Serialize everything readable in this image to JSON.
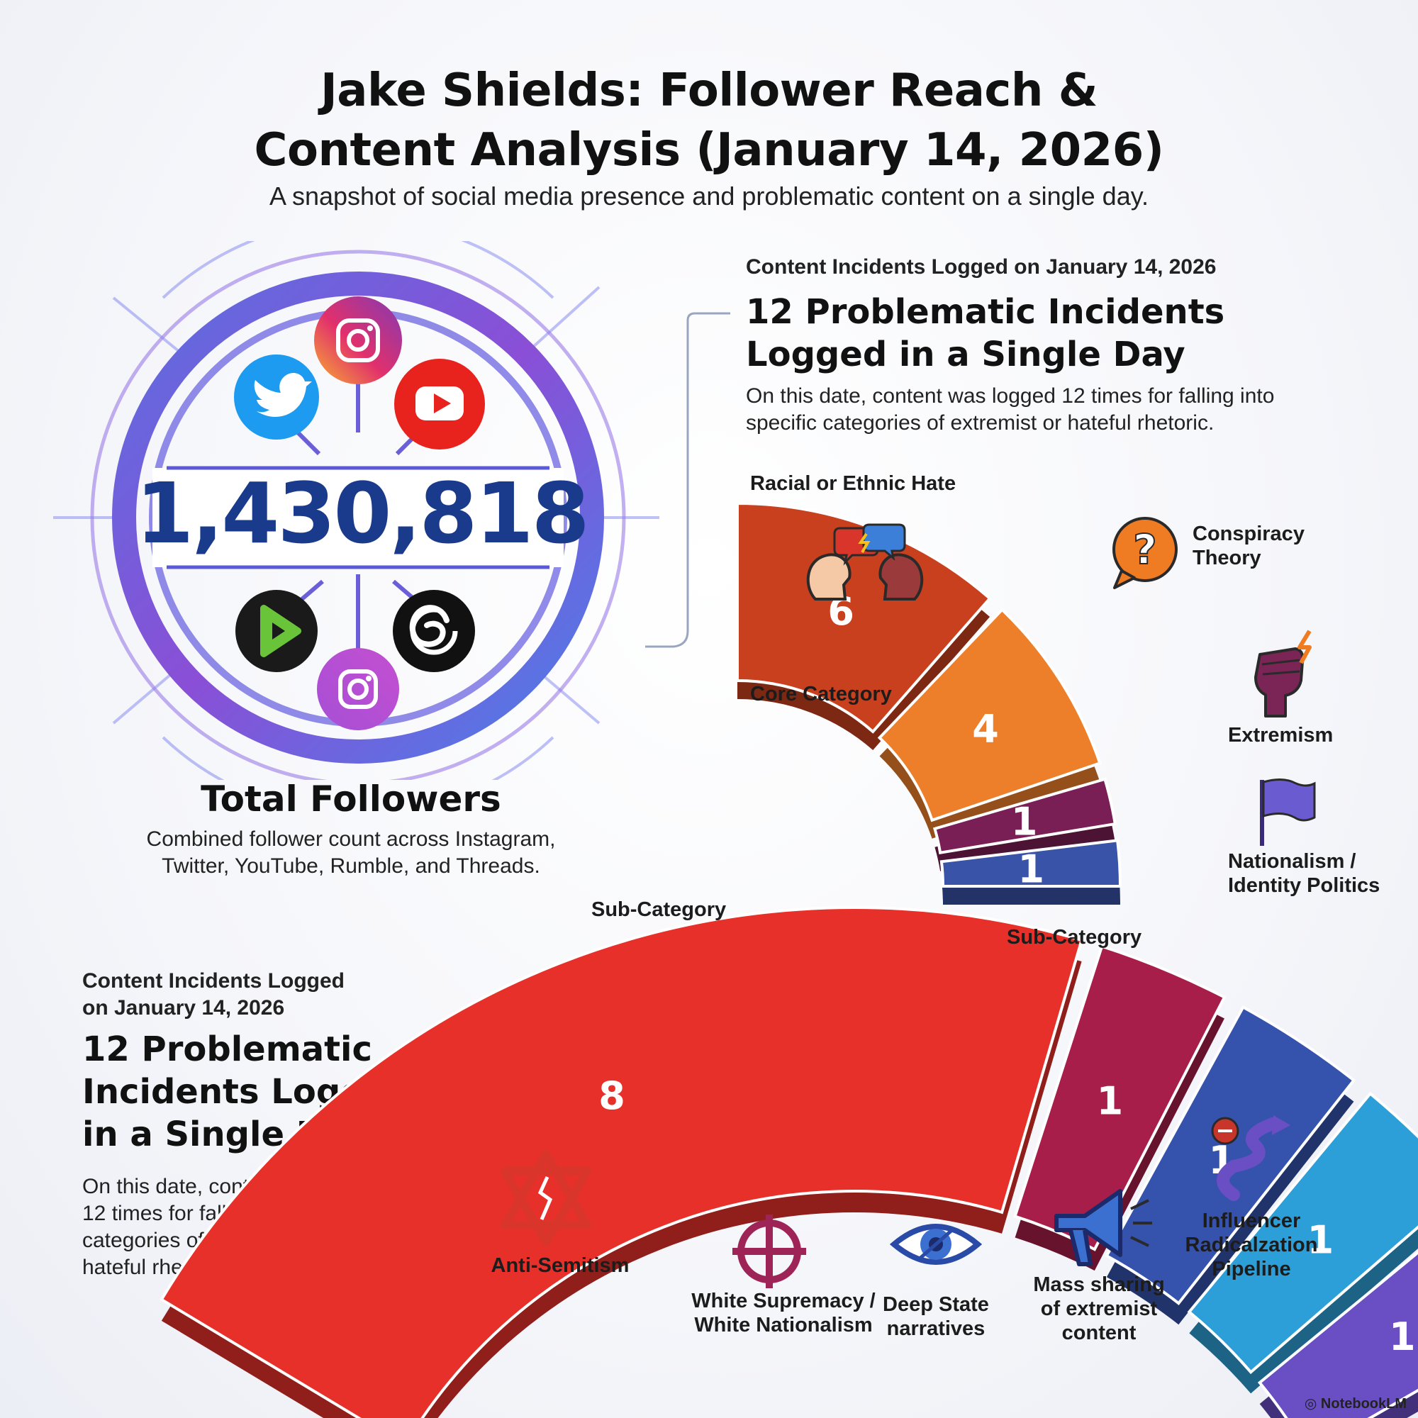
{
  "title_line1": "Jake Shields: Follower Reach &",
  "title_line2": "Content Analysis (January 14, 2026)",
  "subtitle": "A snapshot of social media presence and problematic content on a single day.",
  "followers": {
    "total": "1,430,818",
    "label": "Total Followers",
    "desc_line1": "Combined follower count across Instagram,",
    "desc_line2": "Twitter, YouTube, Rumble, and Threads.",
    "platform_icons": [
      "instagram-icon",
      "twitter-icon",
      "youtube-icon",
      "rumble-icon",
      "threads-icon",
      "instagram-icon"
    ]
  },
  "top_panel": {
    "kicker": "Content Incidents Logged on January 14, 2026",
    "headline_line1": "12 Problematic Incidents",
    "headline_line2": "Logged in a Single Day",
    "desc_line1": "On this date, content was logged 12 times for falling into",
    "desc_line2": "specific categories of extremist or hateful rhetoric.",
    "section_label": "Core Category"
  },
  "bottom_panel": {
    "kicker_line1": "Content Incidents Logged",
    "kicker_line2": "on January 14, 2026",
    "headline_line1": "12 Problematic",
    "headline_line2": "Incidents Logged",
    "headline_line3": "in a Single Day",
    "desc_line1": "On this date, content was logged",
    "desc_line2": "12 times for falling into specific",
    "desc_line3": "categories of extremist or",
    "desc_line4": "hateful rhetoric.",
    "section_label_left": "Sub-Category",
    "section_label_right": "Sub-Category"
  },
  "brand": "NotebookLM",
  "chart_data": [
    {
      "type": "pie",
      "title": "Core Category",
      "categories": [
        "Racial or Ethnic Hate",
        "Conspiracy Theory",
        "Extremism",
        "Nationalism / Identity Politics"
      ],
      "values": [
        6,
        4,
        1,
        1
      ],
      "labels": [
        "6",
        "4",
        "1",
        "1"
      ],
      "colors": [
        "#c8401e",
        "#ee7f2a",
        "#7a1f55",
        "#3853a8"
      ],
      "icons": [
        "people-arguing-icon",
        "question-bubble-icon",
        "raised-fist-icon",
        "flag-icon"
      ]
    },
    {
      "type": "pie",
      "title": "Sub-Category",
      "categories": [
        "Anti-Semitism",
        "White Supremacy / White Nationalism",
        "Deep State narratives",
        "Mass sharing of extremist content",
        "Influencer Radicalzation Pipeline"
      ],
      "values": [
        8,
        1,
        1,
        1,
        1
      ],
      "labels": [
        "8",
        "1",
        "1",
        "1",
        "1"
      ],
      "colors": [
        "#e8302a",
        "#a81e4a",
        "#3552ad",
        "#2d9fd8",
        "#6a4fc4"
      ],
      "icons": [
        "broken-star-of-david-icon",
        "crosshair-icon",
        "eye-icon",
        "megaphone-icon",
        "winding-path-icon"
      ]
    }
  ]
}
